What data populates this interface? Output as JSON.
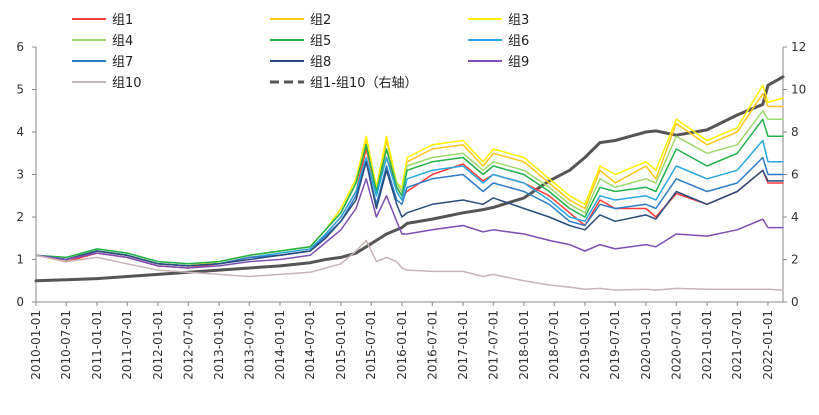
{
  "chart_data": {
    "type": "line",
    "title": "",
    "x_start": "2010-01-01",
    "x_end": "2022-04-01",
    "x_tick_labels": [
      "2010-01-01",
      "2010-07-01",
      "2011-01-01",
      "2011-07-01",
      "2012-01-01",
      "2012-07-01",
      "2013-01-01",
      "2013-07-01",
      "2014-01-01",
      "2014-07-01",
      "2015-01-01",
      "2015-07-01",
      "2016-01-01",
      "2016-07-01",
      "2017-01-01",
      "2017-07-01",
      "2018-01-01",
      "2018-07-01",
      "2019-01-01",
      "2019-07-01",
      "2020-01-01",
      "2020-07-01",
      "2021-01-01",
      "2021-07-01",
      "2022-01-01"
    ],
    "y_left": {
      "min": 0,
      "max": 6,
      "ticks": [
        "0",
        "1",
        "2",
        "3",
        "4",
        "5",
        "6"
      ]
    },
    "y_right": {
      "min": 0,
      "max": 12,
      "ticks": [
        "0",
        "2",
        "4",
        "6",
        "8",
        "10",
        "12"
      ]
    },
    "grid": false,
    "legend_position": "top",
    "anchor_dates": [
      "2010-01-01",
      "2010-07-01",
      "2011-01-01",
      "2011-07-01",
      "2012-01-01",
      "2012-07-01",
      "2013-01-01",
      "2013-07-01",
      "2014-01-01",
      "2014-07-01",
      "2014-10-01",
      "2015-01-01",
      "2015-04-01",
      "2015-06-01",
      "2015-08-01",
      "2015-10-01",
      "2015-12-01",
      "2016-01-01",
      "2016-02-01",
      "2016-07-01",
      "2017-01-01",
      "2017-05-01",
      "2017-07-01",
      "2018-01-01",
      "2018-06-01",
      "2018-10-01",
      "2019-01-01",
      "2019-04-01",
      "2019-07-01",
      "2020-01-01",
      "2020-03-01",
      "2020-07-01",
      "2021-01-01",
      "2021-07-01",
      "2021-12-01",
      "2022-01-01",
      "2022-04-01"
    ],
    "series": [
      {
        "name": "组1",
        "axis": "left",
        "color": "#FF3B3B",
        "width": 1.5,
        "values": [
          1.1,
          0.95,
          1.15,
          1.05,
          0.85,
          0.8,
          0.9,
          1.05,
          1.1,
          1.2,
          1.6,
          2.0,
          2.6,
          3.6,
          2.6,
          3.4,
          2.7,
          2.5,
          2.6,
          3.0,
          3.25,
          2.85,
          3.0,
          2.8,
          2.5,
          2.1,
          1.8,
          2.4,
          2.2,
          2.2,
          2.0,
          2.55,
          2.3,
          2.6,
          3.1,
          2.8,
          2.8
        ]
      },
      {
        "name": "组2",
        "axis": "left",
        "color": "#FFC61A",
        "width": 1.5,
        "values": [
          1.1,
          1.0,
          1.2,
          1.1,
          0.9,
          0.85,
          0.95,
          1.1,
          1.2,
          1.3,
          1.7,
          2.1,
          2.8,
          3.8,
          2.6,
          3.8,
          2.8,
          2.6,
          3.3,
          3.6,
          3.7,
          3.2,
          3.5,
          3.3,
          2.8,
          2.4,
          2.2,
          3.1,
          2.8,
          3.2,
          2.9,
          4.2,
          3.7,
          4.0,
          4.9,
          4.6,
          4.6
        ]
      },
      {
        "name": "组3",
        "axis": "left",
        "color": "#FFF200",
        "width": 1.5,
        "values": [
          1.1,
          1.0,
          1.2,
          1.1,
          0.9,
          0.85,
          0.95,
          1.1,
          1.2,
          1.3,
          1.7,
          2.2,
          2.9,
          3.9,
          2.7,
          3.9,
          2.8,
          2.7,
          3.4,
          3.7,
          3.8,
          3.3,
          3.6,
          3.4,
          2.9,
          2.5,
          2.3,
          3.2,
          3.0,
          3.3,
          3.1,
          4.3,
          3.8,
          4.1,
          5.1,
          4.7,
          4.8
        ]
      },
      {
        "name": "组4",
        "axis": "left",
        "color": "#9FD86A",
        "width": 1.5,
        "values": [
          1.1,
          1.0,
          1.25,
          1.15,
          0.95,
          0.9,
          0.95,
          1.1,
          1.2,
          1.3,
          1.7,
          2.1,
          2.8,
          3.7,
          2.6,
          3.6,
          2.8,
          2.6,
          3.2,
          3.4,
          3.5,
          3.1,
          3.3,
          3.1,
          2.7,
          2.3,
          2.1,
          2.9,
          2.7,
          2.9,
          2.8,
          3.9,
          3.5,
          3.7,
          4.5,
          4.3,
          4.3
        ]
      },
      {
        "name": "组5",
        "axis": "left",
        "color": "#22B14C",
        "width": 1.5,
        "values": [
          1.1,
          1.05,
          1.25,
          1.15,
          0.95,
          0.9,
          0.95,
          1.1,
          1.2,
          1.3,
          1.7,
          2.1,
          2.8,
          3.7,
          2.6,
          3.6,
          2.7,
          2.5,
          3.1,
          3.3,
          3.4,
          3.0,
          3.2,
          3.0,
          2.6,
          2.2,
          2.0,
          2.7,
          2.6,
          2.7,
          2.6,
          3.6,
          3.2,
          3.5,
          4.3,
          3.9,
          3.9
        ]
      },
      {
        "name": "组6",
        "axis": "left",
        "color": "#29A8E0",
        "width": 1.5,
        "values": [
          1.1,
          1.0,
          1.2,
          1.1,
          0.9,
          0.85,
          0.9,
          1.05,
          1.15,
          1.25,
          1.6,
          2.0,
          2.6,
          3.4,
          2.5,
          3.4,
          2.6,
          2.4,
          2.9,
          3.1,
          3.2,
          2.8,
          3.0,
          2.8,
          2.4,
          2.0,
          1.9,
          2.5,
          2.4,
          2.5,
          2.4,
          3.2,
          2.9,
          3.1,
          3.8,
          3.3,
          3.3
        ]
      },
      {
        "name": "组7",
        "axis": "left",
        "color": "#2E7CC4",
        "width": 1.5,
        "values": [
          1.1,
          1.0,
          1.2,
          1.1,
          0.9,
          0.85,
          0.9,
          1.05,
          1.1,
          1.2,
          1.55,
          1.9,
          2.5,
          3.3,
          2.3,
          3.2,
          2.4,
          2.3,
          2.7,
          2.9,
          3.0,
          2.6,
          2.8,
          2.6,
          2.3,
          1.9,
          1.8,
          2.3,
          2.2,
          2.3,
          2.2,
          2.9,
          2.6,
          2.8,
          3.4,
          3.0,
          3.0
        ]
      },
      {
        "name": "组8",
        "axis": "left",
        "color": "#2B4C7E",
        "width": 1.5,
        "values": [
          1.1,
          1.0,
          1.2,
          1.1,
          0.9,
          0.85,
          0.9,
          1.0,
          1.1,
          1.2,
          1.5,
          1.9,
          2.4,
          3.3,
          2.2,
          3.1,
          2.3,
          2.0,
          2.1,
          2.3,
          2.4,
          2.3,
          2.45,
          2.2,
          2.0,
          1.8,
          1.7,
          2.05,
          1.9,
          2.05,
          1.95,
          2.6,
          2.3,
          2.6,
          3.1,
          2.85,
          2.85
        ]
      },
      {
        "name": "组9",
        "axis": "left",
        "color": "#7E4FB3",
        "width": 1.5,
        "values": [
          1.1,
          1.0,
          1.15,
          1.05,
          0.85,
          0.8,
          0.85,
          0.95,
          1.0,
          1.1,
          1.4,
          1.7,
          2.2,
          2.9,
          2.0,
          2.5,
          1.9,
          1.6,
          1.6,
          1.7,
          1.8,
          1.65,
          1.7,
          1.6,
          1.45,
          1.35,
          1.2,
          1.35,
          1.25,
          1.35,
          1.3,
          1.6,
          1.55,
          1.7,
          1.95,
          1.75,
          1.75
        ]
      },
      {
        "name": "组10",
        "axis": "left",
        "color": "#C8B4B4",
        "width": 1.5,
        "values": [
          1.1,
          0.95,
          1.05,
          0.9,
          0.75,
          0.7,
          0.65,
          0.6,
          0.65,
          0.7,
          0.8,
          0.9,
          1.2,
          1.45,
          0.95,
          1.05,
          0.95,
          0.8,
          0.75,
          0.72,
          0.72,
          0.6,
          0.65,
          0.5,
          0.4,
          0.35,
          0.3,
          0.32,
          0.28,
          0.3,
          0.28,
          0.32,
          0.3,
          0.3,
          0.3,
          0.3,
          0.28
        ]
      },
      {
        "name": "组1-组10（右轴）",
        "axis": "right",
        "color": "#555555",
        "width": 3,
        "dashed_legend": true,
        "values": [
          1.0,
          1.05,
          1.1,
          1.2,
          1.3,
          1.4,
          1.5,
          1.6,
          1.7,
          1.85,
          2.0,
          2.1,
          2.3,
          2.6,
          2.9,
          3.2,
          3.4,
          3.5,
          3.7,
          3.9,
          4.2,
          4.35,
          4.45,
          4.9,
          5.7,
          6.2,
          6.8,
          7.5,
          7.6,
          8.0,
          8.05,
          7.85,
          8.1,
          8.8,
          9.3,
          10.2,
          10.6
        ]
      }
    ]
  }
}
